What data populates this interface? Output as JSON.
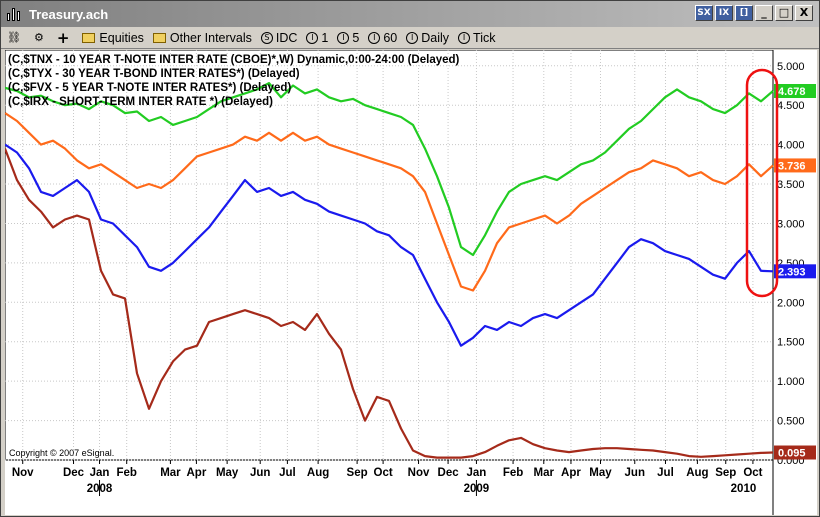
{
  "window": {
    "title": "Treasury.ach",
    "buttons": [
      "SX",
      "IX",
      "[]",
      "_",
      "□",
      "X"
    ]
  },
  "toolbar": {
    "items": [
      {
        "label": "Equities",
        "icon": "folder-icon"
      },
      {
        "label": "Other Intervals",
        "icon": "folder-icon"
      },
      {
        "label": "IDC",
        "icon": "clock-icon",
        "glyph": "S"
      },
      {
        "label": "1",
        "icon": "clock-icon",
        "glyph": "I"
      },
      {
        "label": "5",
        "icon": "clock-icon",
        "glyph": "I"
      },
      {
        "label": "60",
        "icon": "clock-icon",
        "glyph": "I"
      },
      {
        "label": "Daily",
        "icon": "clock-icon",
        "glyph": "I"
      },
      {
        "label": "Tick",
        "icon": "clock-icon",
        "glyph": "I"
      }
    ]
  },
  "chart_data": {
    "type": "line",
    "legend": [
      "(C,$TNX - 10 YEAR T-NOTE INTER RATE (CBOE)*,W) Dynamic,0:00-24:00 (Delayed)",
      "(C,$TYX - 30 YEAR T-BOND INTER RATES*)  (Delayed)",
      "(C,$FVX - 5 YEAR T-NOTE INTER RATES*)  (Delayed)",
      "(C,$IRX - SHORT-TERM INTER RATE *)  (Delayed)"
    ],
    "copyright": "Copyright © 2007 eSignal.",
    "ylim": [
      0,
      5.2
    ],
    "yticks": [
      "5.000",
      "4.500",
      "4.000",
      "3.500",
      "3.000",
      "2.500",
      "2.000",
      "1.500",
      "1.000",
      "0.500",
      "0.000"
    ],
    "xlim": [
      0,
      65
    ],
    "xticks": [
      {
        "label": "Nov",
        "x": 1.5
      },
      {
        "label": "Dec",
        "x": 5.8
      },
      {
        "label": "Jan",
        "x": 8.0
      },
      {
        "label": "Feb",
        "x": 10.3
      },
      {
        "label": "Mar",
        "x": 14.0
      },
      {
        "label": "Apr",
        "x": 16.2
      },
      {
        "label": "May",
        "x": 18.8
      },
      {
        "label": "Jun",
        "x": 21.6
      },
      {
        "label": "Jul",
        "x": 23.9
      },
      {
        "label": "Aug",
        "x": 26.5
      },
      {
        "label": "Sep",
        "x": 29.8
      },
      {
        "label": "Oct",
        "x": 32.0
      },
      {
        "label": "Nov",
        "x": 35.0
      },
      {
        "label": "Dec",
        "x": 37.5
      },
      {
        "label": "Jan",
        "x": 39.9
      },
      {
        "label": "Feb",
        "x": 43.0
      },
      {
        "label": "Mar",
        "x": 45.6
      },
      {
        "label": "Apr",
        "x": 47.9
      },
      {
        "label": "May",
        "x": 50.4
      },
      {
        "label": "Jun",
        "x": 53.3
      },
      {
        "label": "Jul",
        "x": 55.9
      },
      {
        "label": "Aug",
        "x": 58.6
      },
      {
        "label": "Sep",
        "x": 61.0
      },
      {
        "label": "Oct",
        "x": 63.3
      }
    ],
    "years": [
      {
        "label": "2008",
        "x": 8.0
      },
      {
        "label": "2009",
        "x": 39.9
      }
    ],
    "series": [
      {
        "name": "$TYX",
        "color": "#22cc22",
        "last_label": "4.678",
        "values": [
          4.72,
          4.68,
          4.6,
          4.62,
          4.55,
          4.5,
          4.52,
          4.45,
          4.55,
          4.5,
          4.4,
          4.42,
          4.3,
          4.35,
          4.25,
          4.3,
          4.35,
          4.45,
          4.55,
          4.6,
          4.65,
          4.7,
          4.78,
          4.6,
          4.75,
          4.65,
          4.7,
          4.6,
          4.55,
          4.58,
          4.5,
          4.45,
          4.4,
          4.35,
          4.25,
          3.95,
          3.6,
          3.2,
          2.7,
          2.6,
          2.85,
          3.15,
          3.4,
          3.5,
          3.55,
          3.6,
          3.55,
          3.65,
          3.75,
          3.8,
          3.9,
          4.05,
          4.2,
          4.3,
          4.45,
          4.6,
          4.7,
          4.6,
          4.55,
          4.45,
          4.4,
          4.5,
          4.65,
          4.55,
          4.68
        ]
      },
      {
        "name": "$TNX",
        "color": "#ff6a1a",
        "last_label": "3.736",
        "values": [
          4.4,
          4.3,
          4.15,
          4.0,
          4.05,
          3.95,
          3.8,
          3.7,
          3.75,
          3.65,
          3.55,
          3.45,
          3.5,
          3.45,
          3.55,
          3.7,
          3.85,
          3.9,
          3.95,
          4.0,
          4.1,
          4.05,
          4.15,
          4.05,
          4.15,
          4.05,
          4.1,
          4.0,
          3.95,
          3.9,
          3.85,
          3.8,
          3.75,
          3.7,
          3.6,
          3.4,
          3.0,
          2.6,
          2.2,
          2.15,
          2.4,
          2.75,
          2.95,
          3.0,
          3.05,
          3.1,
          3.0,
          3.1,
          3.25,
          3.35,
          3.45,
          3.55,
          3.65,
          3.7,
          3.8,
          3.75,
          3.7,
          3.6,
          3.65,
          3.55,
          3.5,
          3.6,
          3.75,
          3.6,
          3.736
        ]
      },
      {
        "name": "$FVX",
        "color": "#1a1aee",
        "last_label": "2.393",
        "values": [
          4.0,
          3.9,
          3.7,
          3.4,
          3.35,
          3.45,
          3.55,
          3.4,
          3.05,
          3.0,
          2.85,
          2.7,
          2.45,
          2.4,
          2.5,
          2.65,
          2.8,
          2.95,
          3.15,
          3.35,
          3.55,
          3.4,
          3.45,
          3.35,
          3.4,
          3.3,
          3.25,
          3.15,
          3.1,
          3.05,
          3.0,
          2.9,
          2.85,
          2.7,
          2.6,
          2.3,
          2.0,
          1.75,
          1.45,
          1.55,
          1.7,
          1.65,
          1.75,
          1.7,
          1.8,
          1.85,
          1.8,
          1.9,
          2.0,
          2.1,
          2.3,
          2.5,
          2.7,
          2.8,
          2.75,
          2.65,
          2.6,
          2.55,
          2.45,
          2.35,
          2.3,
          2.5,
          2.65,
          2.4,
          2.393
        ]
      },
      {
        "name": "$IRX",
        "color": "#a52a1a",
        "last_label": "0.095",
        "values": [
          3.95,
          3.55,
          3.3,
          3.15,
          2.95,
          3.05,
          3.1,
          3.05,
          2.4,
          2.1,
          2.05,
          1.1,
          0.65,
          1.0,
          1.25,
          1.4,
          1.45,
          1.75,
          1.8,
          1.85,
          1.9,
          1.85,
          1.8,
          1.7,
          1.75,
          1.65,
          1.85,
          1.6,
          1.4,
          0.9,
          0.5,
          0.8,
          0.75,
          0.4,
          0.12,
          0.05,
          0.03,
          0.03,
          0.03,
          0.05,
          0.1,
          0.18,
          0.25,
          0.28,
          0.2,
          0.15,
          0.12,
          0.1,
          0.12,
          0.14,
          0.15,
          0.15,
          0.14,
          0.13,
          0.12,
          0.1,
          0.08,
          0.05,
          0.04,
          0.05,
          0.06,
          0.07,
          0.08,
          0.09,
          0.095
        ]
      }
    ]
  }
}
